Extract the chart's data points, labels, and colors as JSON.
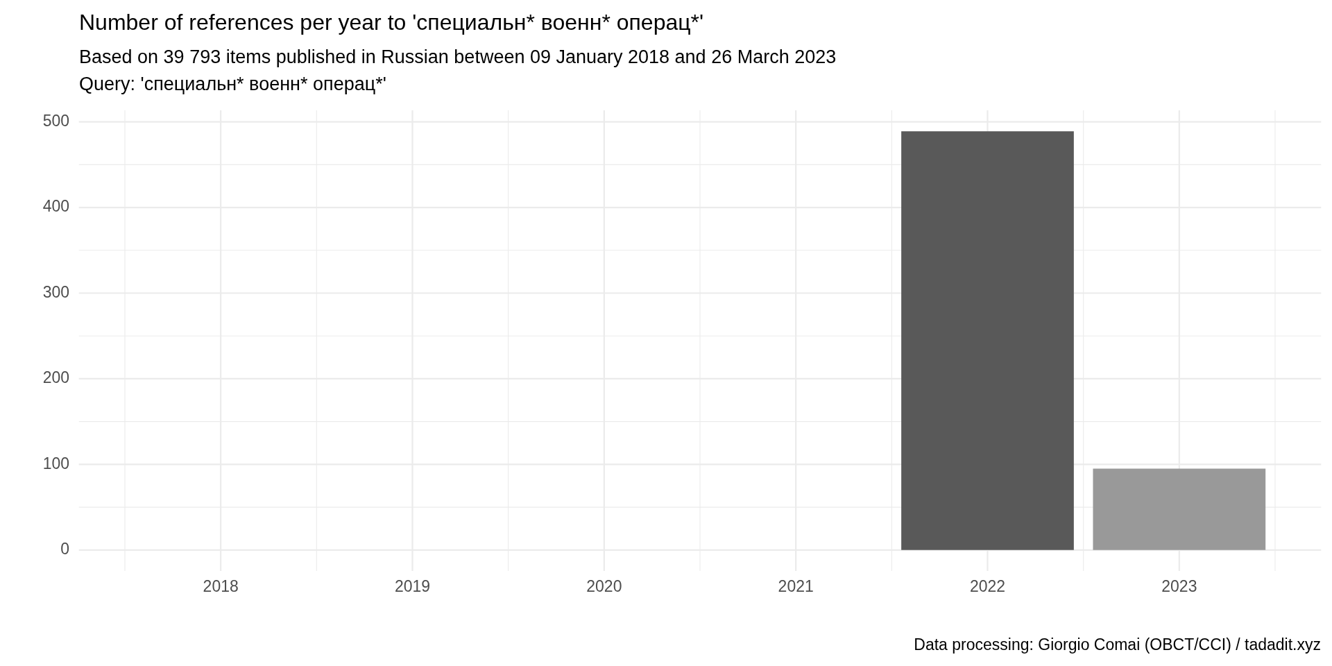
{
  "chart_data": {
    "type": "bar",
    "title": "Number of references per year to 'специальн* военн* операц*'",
    "subtitle": "Based on 39 793 items published in Russian between 09 January 2018 and 26 March 2023\nQuery: 'специальн* военн* операц*'",
    "categories": [
      "2018",
      "2019",
      "2020",
      "2021",
      "2022",
      "2023"
    ],
    "values": [
      0,
      0,
      0,
      0,
      489,
      95
    ],
    "colors": [
      "#595959",
      "#595959",
      "#595959",
      "#595959",
      "#595959",
      "#999999"
    ],
    "ylim": [
      -24.45,
      513.45
    ],
    "yticks": [
      0,
      100,
      200,
      300,
      400,
      500
    ],
    "grid": true,
    "annotations": [
      "Data processing: Giorgio Comai (OBCT/CCI) / tadadit.xyz"
    ]
  }
}
